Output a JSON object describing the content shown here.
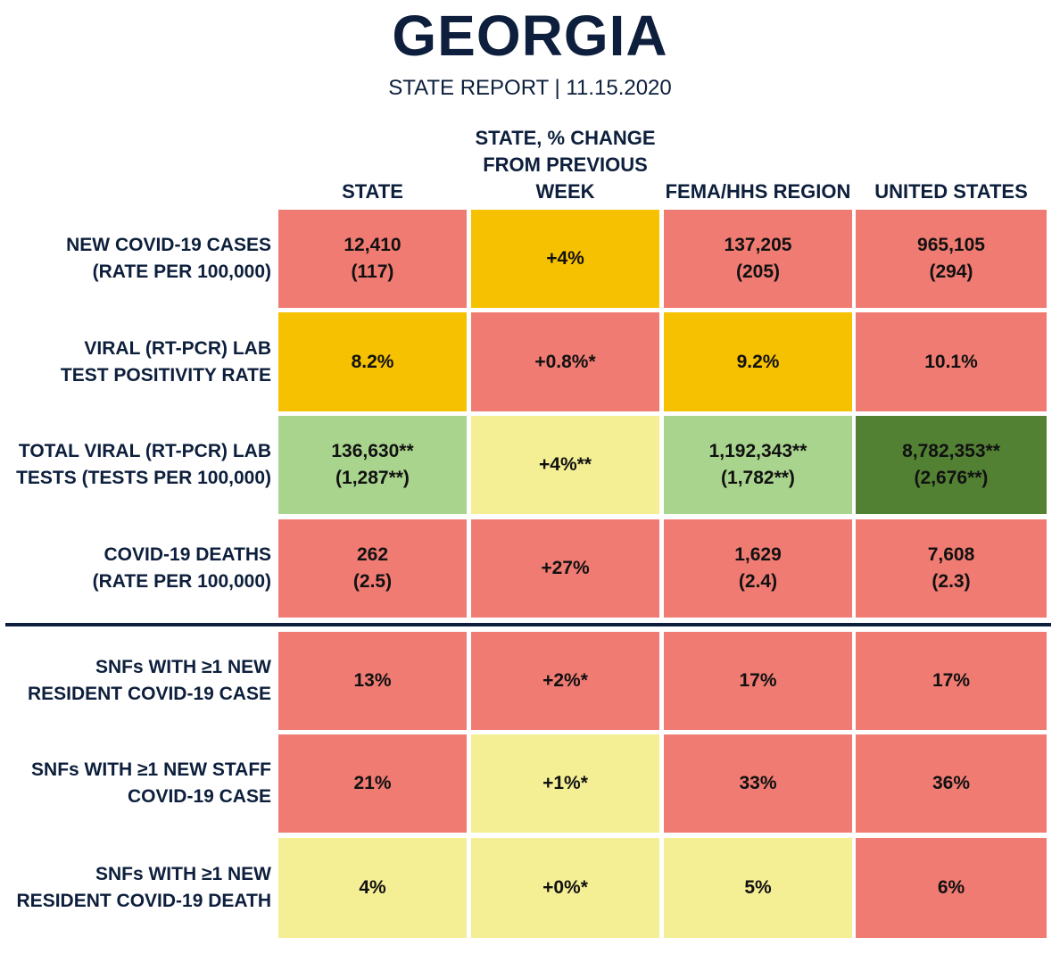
{
  "header": {
    "title": "GEORGIA",
    "subtitle": "STATE REPORT | 11.15.2020"
  },
  "columns": [
    "STATE",
    "STATE, % CHANGE\nFROM PREVIOUS\nWEEK",
    "FEMA/HHS REGION",
    "UNITED STATES"
  ],
  "rows": [
    {
      "label": "NEW COVID-19 CASES\n(RATE PER 100,000)",
      "cells": [
        {
          "value": "12,410\n(117)",
          "color": "#f07b72"
        },
        {
          "value": "+4%",
          "color": "#f6c100"
        },
        {
          "value": "137,205\n(205)",
          "color": "#f07b72"
        },
        {
          "value": "965,105\n(294)",
          "color": "#f07b72"
        }
      ]
    },
    {
      "label": "VIRAL (RT-PCR) LAB\nTEST POSITIVITY RATE",
      "cells": [
        {
          "value": "8.2%",
          "color": "#f6c100"
        },
        {
          "value": "+0.8%*",
          "color": "#f07b72"
        },
        {
          "value": "9.2%",
          "color": "#f6c100"
        },
        {
          "value": "10.1%",
          "color": "#f07b72"
        }
      ]
    },
    {
      "label": "TOTAL VIRAL (RT-PCR) LAB\nTESTS (TESTS PER 100,000)",
      "cells": [
        {
          "value": "136,630**\n(1,287**)",
          "color": "#a9d48e"
        },
        {
          "value": "+4%**",
          "color": "#f4ee94"
        },
        {
          "value": "1,192,343**\n(1,782**)",
          "color": "#a9d48e"
        },
        {
          "value": "8,782,353**\n(2,676**)",
          "color": "#528134"
        }
      ]
    },
    {
      "label": "COVID-19 DEATHS\n(RATE PER 100,000)",
      "cells": [
        {
          "value": "262\n(2.5)",
          "color": "#f07b72"
        },
        {
          "value": "+27%",
          "color": "#f07b72"
        },
        {
          "value": "1,629\n(2.4)",
          "color": "#f07b72"
        },
        {
          "value": "7,608\n(2.3)",
          "color": "#f07b72"
        }
      ]
    },
    {
      "label": "SNFs WITH ≥1 NEW\nRESIDENT COVID-19 CASE",
      "cells": [
        {
          "value": "13%",
          "color": "#f07b72"
        },
        {
          "value": "+2%*",
          "color": "#f07b72"
        },
        {
          "value": "17%",
          "color": "#f07b72"
        },
        {
          "value": "17%",
          "color": "#f07b72"
        }
      ]
    },
    {
      "label": "SNFs WITH ≥1 NEW STAFF\nCOVID-19 CASE",
      "cells": [
        {
          "value": "21%",
          "color": "#f07b72"
        },
        {
          "value": "+1%*",
          "color": "#f4ee94"
        },
        {
          "value": "33%",
          "color": "#f07b72"
        },
        {
          "value": "36%",
          "color": "#f07b72"
        }
      ]
    },
    {
      "label": "SNFs WITH ≥1 NEW\nRESIDENT COVID-19 DEATH",
      "cells": [
        {
          "value": "4%",
          "color": "#f4ee94"
        },
        {
          "value": "+0%*",
          "color": "#f4ee94"
        },
        {
          "value": "5%",
          "color": "#f4ee94"
        },
        {
          "value": "6%",
          "color": "#f07b72"
        }
      ]
    }
  ]
}
